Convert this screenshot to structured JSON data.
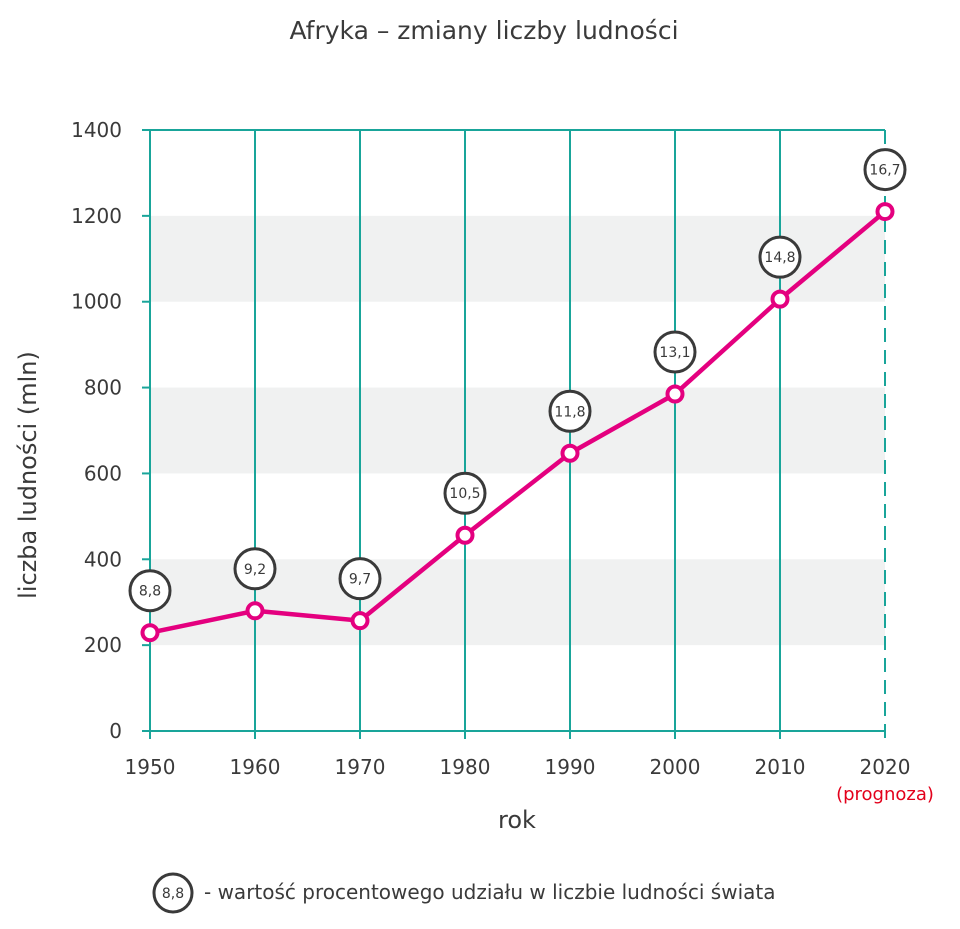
{
  "chart_data": {
    "type": "line",
    "title": "Afryka – zmiany liczby ludności",
    "xlabel": "rok",
    "ylabel": "liczba ludności (mln)",
    "x": [
      "1950",
      "1960",
      "1970",
      "1980",
      "1990",
      "2000",
      "2010",
      "2020"
    ],
    "ylim": [
      0,
      1400
    ],
    "yticks": [
      "0",
      "200",
      "400",
      "600",
      "800",
      "1000",
      "1200",
      "1400"
    ],
    "series": [
      {
        "values": [
          229,
          280,
          257,
          456,
          647,
          785,
          1006,
          1210
        ]
      }
    ],
    "data_labels": [
      "8,8",
      "9,2",
      "9,7",
      "10,5",
      "11,8",
      "13,1",
      "14,8",
      "16,7"
    ],
    "forecast_note": "(prognoza)",
    "legend": {
      "sample": "8,8",
      "text": "- wartość procentowego udziału w liczbie ludności świata"
    },
    "colors": {
      "line": "#e4007f",
      "grid": "#19a59a",
      "band": "#f0f1f1",
      "forecast": "#e3001b"
    },
    "grid": true
  }
}
